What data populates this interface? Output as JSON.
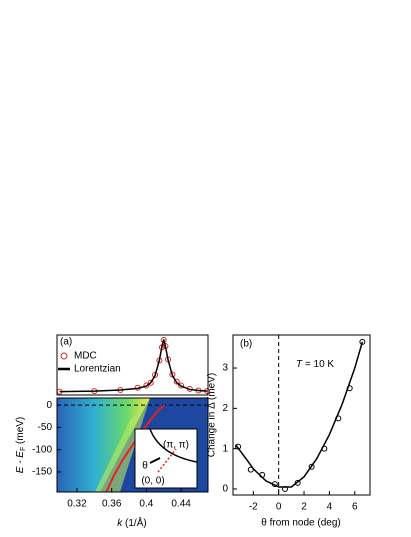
{
  "chart_data": [
    {
      "type": "line",
      "label": "(a)",
      "xlim": [
        0.297,
        0.471
      ],
      "ylim": [
        0,
        1.08
      ],
      "x": [
        0.3,
        0.34,
        0.37,
        0.39,
        0.4,
        0.405,
        0.41,
        0.415,
        0.418,
        0.42,
        0.422,
        0.425,
        0.43,
        0.435,
        0.44,
        0.45,
        0.46,
        0.47
      ],
      "series": [
        {
          "name": "MDC",
          "color": "#e02020",
          "marker": "o",
          "values": [
            0.06,
            0.07,
            0.09,
            0.13,
            0.17,
            0.22,
            0.36,
            0.62,
            0.86,
            0.99,
            0.88,
            0.64,
            0.37,
            0.24,
            0.17,
            0.11,
            0.08,
            0.07
          ]
        },
        {
          "name": "Lorentzian",
          "color": "#000000",
          "values": [
            0.06,
            0.07,
            0.09,
            0.12,
            0.16,
            0.22,
            0.35,
            0.63,
            0.88,
            1.0,
            0.87,
            0.63,
            0.35,
            0.22,
            0.16,
            0.1,
            0.08,
            0.07
          ]
        }
      ]
    },
    {
      "type": "line",
      "xlim": [
        0.297,
        0.471
      ],
      "ylim": [
        -195,
        16
      ],
      "xticks": [
        0.32,
        0.36,
        0.4,
        0.44
      ],
      "yticks": [
        0,
        -50,
        -100,
        -150
      ],
      "xlabel_k": "k",
      "xlabel_rest": " (1/Å)",
      "ylabel_e": "E - E",
      "ylabel_sub": "F",
      "ylabel_unit": " (meV)",
      "hline": 0,
      "inset": {
        "corner": "(π, π)",
        "angle": "θ",
        "origin": "(0, 0)"
      },
      "series": [
        {
          "color": "#e82020",
          "x": [
            0.354,
            0.362,
            0.372,
            0.384,
            0.394,
            0.402,
            0.41,
            0.416,
            0.421
          ],
          "values": [
            -195,
            -160,
            -125,
            -90,
            -62,
            -40,
            -20,
            -8,
            0
          ]
        }
      ]
    },
    {
      "type": "scatter",
      "label": "(b)",
      "annotation_t": "T",
      "annotation_rest": " = 10 K",
      "xlim": [
        -3.6,
        7.2
      ],
      "ylim": [
        -0.15,
        3.82
      ],
      "xticks": [
        -2,
        0,
        2,
        4,
        6
      ],
      "yticks": [
        0,
        1,
        2,
        3
      ],
      "xlabel": "θ from node (deg)",
      "ylabel": "Change in Δ (meV)",
      "vline": 0,
      "series": [
        {
          "color": "#000000",
          "marker": "o",
          "x": [
            -3.2,
            -2.2,
            -1.3,
            -0.3,
            0.5,
            1.5,
            2.6,
            3.6,
            4.7,
            5.6,
            6.6
          ],
          "values": [
            1.05,
            0.48,
            0.35,
            0.12,
            0.0,
            0.15,
            0.55,
            1.0,
            1.75,
            2.5,
            3.65
          ]
        },
        {
          "color": "#000000",
          "x": [
            -3.4,
            -2.5,
            -2,
            -1,
            0,
            1,
            2,
            3,
            4,
            5,
            6,
            6.6
          ],
          "values": [
            1.1,
            0.72,
            0.5,
            0.2,
            0.05,
            0.05,
            0.3,
            0.75,
            1.35,
            2.1,
            3.0,
            3.65
          ]
        }
      ]
    }
  ]
}
